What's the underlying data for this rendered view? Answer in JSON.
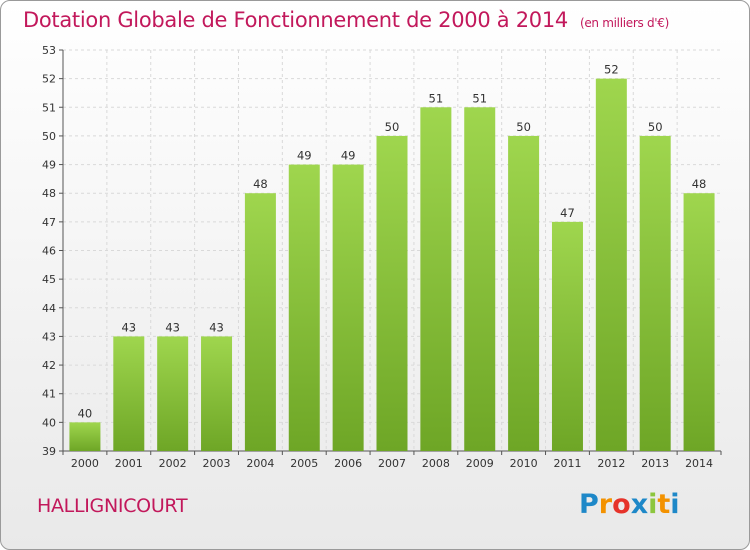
{
  "header": {
    "title": "Dotation Globale de Fonctionnement de 2000 à 2014",
    "subtitle": "(en milliers d'€)"
  },
  "footer": {
    "town": "HALLIGNICOURT",
    "logo": {
      "letters": [
        "P",
        "r",
        "o",
        "x",
        "i",
        "t",
        "i"
      ],
      "colors": [
        "#1e88c8",
        "#f39200",
        "#e6332a",
        "#1e88c8",
        "#8cc63e",
        "#f39200",
        "#1e88c8"
      ]
    }
  },
  "chart_data": {
    "type": "bar",
    "categories": [
      "2000",
      "2001",
      "2002",
      "2003",
      "2004",
      "2005",
      "2006",
      "2007",
      "2008",
      "2009",
      "2010",
      "2011",
      "2012",
      "2013",
      "2014"
    ],
    "values": [
      40,
      43,
      43,
      43,
      48,
      49,
      49,
      50,
      51,
      51,
      50,
      47,
      52,
      50,
      48
    ],
    "ylim": [
      39,
      53
    ],
    "yticks": [
      39,
      40,
      41,
      42,
      43,
      44,
      45,
      46,
      47,
      48,
      49,
      50,
      51,
      52,
      53
    ],
    "grid": true,
    "bar_color": "#8cc63e",
    "bar_color_top": "#9fd64e",
    "bar_color_bottom": "#6ea626"
  }
}
